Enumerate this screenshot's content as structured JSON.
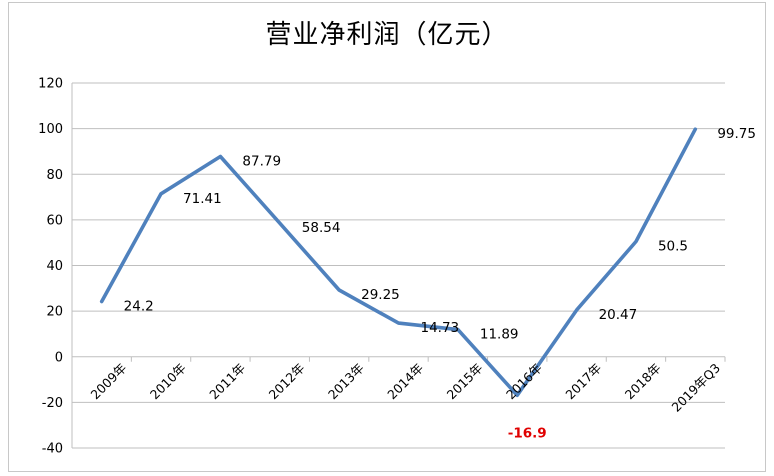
{
  "chart_data": {
    "type": "line",
    "title": "营业净利润（亿元）",
    "xlabel": "",
    "ylabel": "",
    "categories": [
      "2009年",
      "2010年",
      "2011年",
      "2012年",
      "2013年",
      "2014年",
      "2015年",
      "2016年",
      "2017年",
      "2018年",
      "2019年Q3"
    ],
    "series": [
      {
        "values": [
          24.2,
          71.41,
          87.79,
          58.54,
          29.25,
          14.73,
          11.89,
          -16.9,
          20.47,
          50.5,
          99.75
        ],
        "data_labels": [
          "24.2",
          "71.41",
          "87.79",
          "58.54",
          "29.25",
          "14.73",
          "11.89",
          "-16.9",
          "20.47",
          "50.5",
          "99.75"
        ],
        "color": "#4f81bd",
        "negative_label_color": "#e00000"
      }
    ],
    "ylim": [
      -40,
      120
    ],
    "yticks": [
      -40,
      -20,
      0,
      20,
      40,
      60,
      80,
      100,
      120
    ],
    "ytick_labels": [
      "-40",
      "-20",
      "0",
      "20",
      "40",
      "60",
      "80",
      "100",
      "120"
    ],
    "grid": true,
    "legend": "none"
  }
}
